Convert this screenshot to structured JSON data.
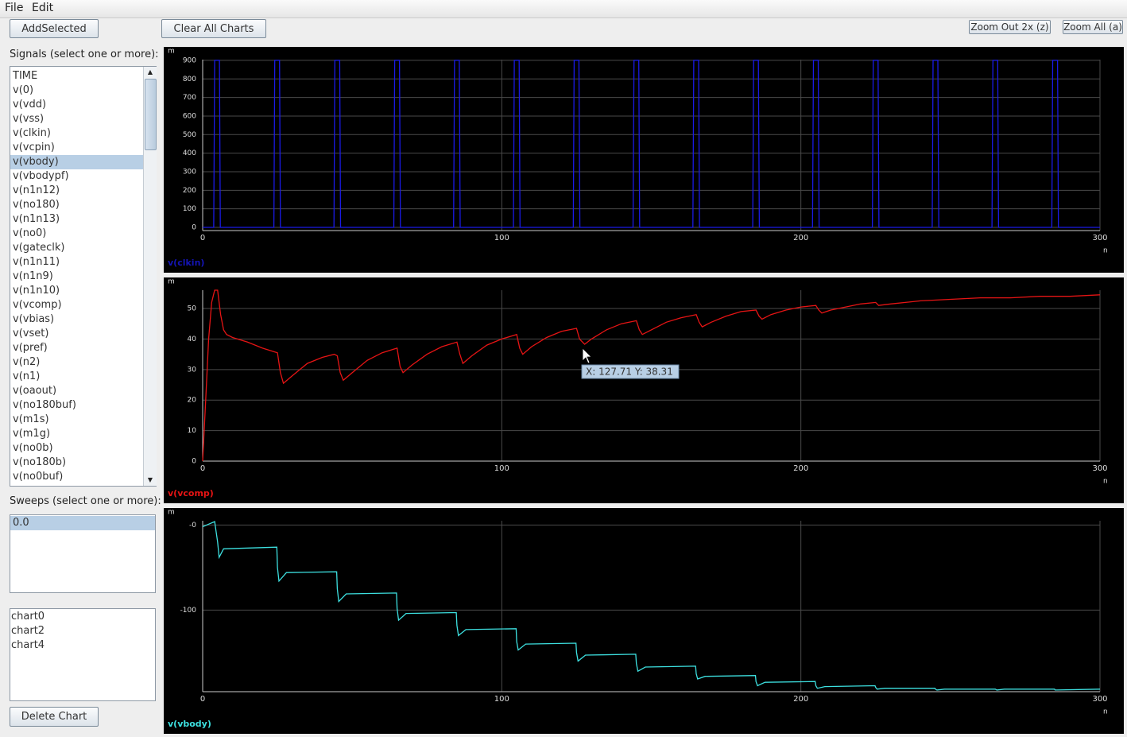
{
  "menu": [
    "File",
    "Edit"
  ],
  "buttons": {
    "add_selected": "AddSelected",
    "clear_all": "Clear All Charts",
    "zoom_out": "Zoom Out 2x (z)",
    "zoom_all": "Zoom All (a)",
    "delete_chart": "Delete Chart"
  },
  "signals_label": "Signals (select one or more):",
  "signals": [
    "TIME",
    "v(0)",
    "v(vdd)",
    "v(vss)",
    "v(clkin)",
    "v(vcpin)",
    "v(vbody)",
    "v(vbodypf)",
    "v(n1n12)",
    "v(no180)",
    "v(n1n13)",
    "v(no0)",
    "v(gateclk)",
    "v(n1n11)",
    "v(n1n9)",
    "v(n1n10)",
    "v(vcomp)",
    "v(vbias)",
    "v(vset)",
    "v(pref)",
    "v(n2)",
    "v(n1)",
    "v(oaout)",
    "v(no180buf)",
    "v(m1s)",
    "v(m1g)",
    "v(no0b)",
    "v(no180b)",
    "v(no0buf)"
  ],
  "selected_signal": 6,
  "sweeps_label": "Sweeps (select one or more):",
  "sweeps": [
    "0.0"
  ],
  "charts": [
    "chart0",
    "chart2",
    "chart4"
  ],
  "chart_data": [
    {
      "type": "line",
      "x_unit": "n",
      "y_unit": "m",
      "xlim": [
        0,
        300
      ],
      "xticks": [
        0,
        100,
        200,
        300
      ],
      "ylim": [
        -17,
        904
      ],
      "yticks": [
        0,
        100,
        200,
        300,
        400,
        500,
        600,
        700,
        800,
        900
      ],
      "grid": true,
      "x": [
        0,
        3.7,
        4,
        5.6,
        5.9,
        23.8,
        24.1,
        25.7,
        26,
        43.9,
        44.2,
        45.8,
        46.1,
        63.9,
        64.2,
        65.8,
        66.1,
        83.9,
        84.2,
        85.8,
        86.1,
        103.9,
        104.2,
        105.8,
        106.1,
        123.9,
        124.2,
        125.8,
        126.1,
        143.9,
        144.2,
        145.8,
        146.1,
        163.9,
        164.2,
        165.8,
        166.1,
        183.9,
        184.2,
        185.8,
        186.1,
        203.9,
        204.2,
        205.8,
        206.1,
        223.9,
        224.2,
        225.8,
        226.1,
        243.9,
        244.2,
        245.8,
        246.1,
        263.9,
        264.2,
        265.8,
        266.1,
        283.9,
        284.2,
        285.8,
        286.1,
        300
      ],
      "series": [
        {
          "name": "v(clkin)",
          "color": "#1a1ae6",
          "label_color": "#1414b4",
          "values": [
            0,
            0,
            900,
            900,
            0,
            0,
            900,
            900,
            0,
            0,
            900,
            900,
            0,
            0,
            900,
            900,
            0,
            0,
            900,
            900,
            0,
            0,
            900,
            900,
            0,
            0,
            900,
            900,
            0,
            0,
            900,
            900,
            0,
            0,
            900,
            900,
            0,
            0,
            900,
            900,
            0,
            0,
            900,
            900,
            0,
            0,
            900,
            900,
            0,
            0,
            900,
            900,
            0,
            0,
            900,
            900,
            0,
            0,
            900,
            900,
            0,
            0
          ]
        }
      ]
    },
    {
      "type": "line",
      "x_unit": "n",
      "y_unit": "m",
      "xlim": [
        0,
        300
      ],
      "xticks": [
        0,
        100,
        200,
        300
      ],
      "ylim": [
        0,
        56
      ],
      "yticks": [
        0,
        10,
        20,
        30,
        40,
        50
      ],
      "grid": true,
      "annotation": "X: 127.71 Y: 38.31",
      "x": [
        0,
        1,
        2,
        3,
        4,
        5,
        6,
        7,
        8,
        10,
        15,
        20,
        25,
        26,
        27,
        30,
        35,
        40,
        44,
        45,
        46,
        47,
        50,
        55,
        60,
        65,
        66,
        67,
        70,
        75,
        80,
        85,
        86,
        87,
        90,
        95,
        100,
        105,
        106,
        107,
        110,
        115,
        120,
        125,
        126,
        127.7,
        130,
        135,
        140,
        145,
        146,
        147,
        150,
        155,
        160,
        165,
        166,
        167,
        170,
        175,
        180,
        185,
        186,
        187,
        190,
        195,
        200,
        205,
        206,
        207,
        210,
        215,
        220,
        225,
        226,
        230,
        240,
        250,
        260,
        270,
        280,
        290,
        300
      ],
      "series": [
        {
          "name": "v(vcomp)",
          "color": "#e61414",
          "label_color": "#e61414",
          "values": [
            0,
            20,
            40,
            52,
            56,
            56,
            48,
            43,
            41.5,
            40.5,
            39,
            37,
            35.5,
            29,
            25.5,
            28,
            32,
            34,
            35,
            34.5,
            29,
            26.5,
            29,
            33,
            35.5,
            37,
            31,
            29,
            31.5,
            35,
            37.5,
            39,
            35,
            32,
            34.5,
            38,
            40,
            41.5,
            37,
            35,
            37.5,
            40.5,
            42.5,
            43.5,
            40,
            38.3,
            40,
            43,
            45,
            46,
            43,
            41.5,
            43,
            45.5,
            47,
            48,
            45.5,
            44,
            45.5,
            47.5,
            49,
            49.5,
            47.5,
            46.5,
            48,
            49.5,
            50.5,
            51,
            49.5,
            48.5,
            49.5,
            50.5,
            51.5,
            52,
            51,
            51.5,
            52.5,
            53,
            53.5,
            53.5,
            54,
            54,
            54.5
          ]
        }
      ]
    },
    {
      "type": "line",
      "x_unit": "n",
      "y_unit": "m",
      "xlim": [
        0,
        300
      ],
      "xticks": [
        0,
        100,
        200,
        300
      ],
      "ylim": [
        -196,
        5
      ],
      "yticks": [
        {
          "value": 0,
          "label": "-0"
        },
        -100
      ],
      "grid": true,
      "x": [
        0,
        2,
        4,
        5,
        5.5,
        7,
        24.8,
        25,
        25.5,
        28,
        44.8,
        45,
        45.5,
        48,
        64.8,
        65,
        65.5,
        68,
        84.8,
        85,
        85.5,
        88,
        104.8,
        105,
        105.5,
        108,
        124.8,
        125,
        125.5,
        128,
        144.8,
        145,
        145.5,
        148,
        164.8,
        165,
        165.5,
        168,
        184.8,
        185,
        185.5,
        188,
        204.8,
        205,
        205.5,
        208,
        224.8,
        225,
        225.5,
        228,
        244.8,
        245,
        245.5,
        248,
        264.8,
        265,
        265.5,
        268,
        284.8,
        285,
        285.5,
        300
      ],
      "series": [
        {
          "name": "v(vbody)",
          "color": "#3de0e0",
          "label_color": "#3de0e0",
          "values": [
            -2,
            1,
            4,
            -20,
            -38,
            -28,
            -26,
            -50,
            -66,
            -56,
            -55,
            -75,
            -90,
            -81,
            -80,
            -98,
            -112,
            -104,
            -103,
            -118,
            -130,
            -123,
            -122,
            -137,
            -147,
            -140,
            -139,
            -150,
            -160,
            -153,
            -152,
            -163,
            -172,
            -167,
            -166,
            -175,
            -181,
            -178,
            -177,
            -184,
            -189,
            -185,
            -184,
            -189,
            -192,
            -190,
            -189,
            -191,
            -193,
            -192,
            -192,
            -193,
            -194,
            -193,
            -193,
            -193,
            -194,
            -193,
            -193,
            -194,
            -194,
            -193
          ]
        }
      ]
    }
  ]
}
